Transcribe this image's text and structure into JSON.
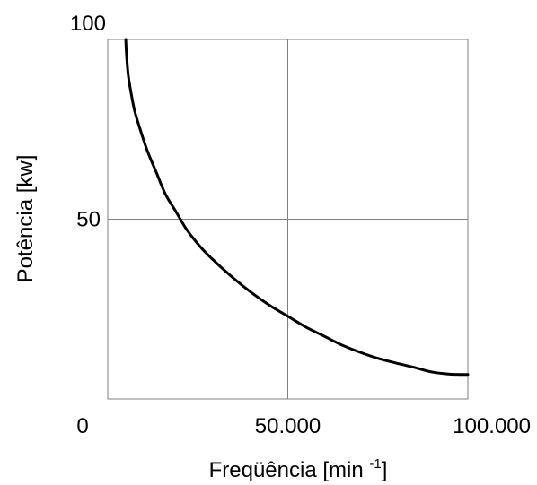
{
  "chart_data": {
    "type": "line",
    "title": "",
    "xlabel": {
      "main": "Freqüência [min ",
      "superscript": "-1",
      "suffix": "]"
    },
    "ylabel": "Potência [kw]",
    "xlim": [
      0,
      100000
    ],
    "ylim": [
      0,
      100
    ],
    "x_ticks": [
      {
        "value": 0,
        "label": "0"
      },
      {
        "value": 50000,
        "label": "50.000"
      },
      {
        "value": 100000,
        "label": "100.000"
      }
    ],
    "y_ticks": [
      {
        "value": 50,
        "label": "50"
      },
      {
        "value": 100,
        "label": "100"
      }
    ],
    "grid": true,
    "series": [
      {
        "color": "#000000",
        "x": [
          5000,
          5200,
          5700,
          6500,
          7500,
          9000,
          11000,
          13500,
          16000,
          19000,
          22000,
          26000,
          30000,
          35000,
          40000,
          45000,
          50000,
          55000,
          60000,
          65000,
          70000,
          75000,
          80000,
          85000,
          90000,
          95000,
          100000
        ],
        "y": [
          100,
          96,
          90,
          85,
          80,
          75,
          69,
          63,
          57,
          52,
          47,
          42,
          38,
          33.5,
          29.5,
          26,
          23,
          20,
          17.5,
          15,
          13,
          11.3,
          10,
          8.8,
          7.5,
          6.9,
          6.8
        ]
      }
    ]
  },
  "colors": {
    "grid": "#808080",
    "axis": "#808080",
    "curve": "#000000",
    "text": "#000000"
  }
}
